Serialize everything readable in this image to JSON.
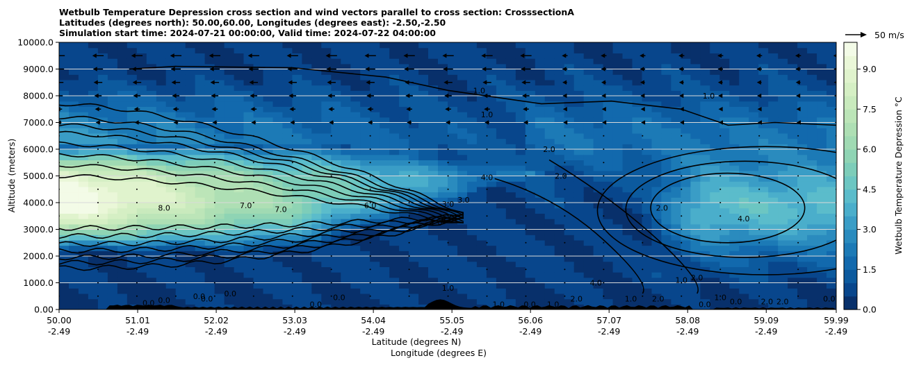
{
  "title": {
    "line1": "Wetbulb Temperature Depression cross section and wind vectors parallel to cross section: CrosssectionA",
    "line2": "Latitudes (degrees north): 50.00,60.00, Longitudes (degrees east): -2.50,-2.50",
    "line3": "Simulation start time: 2024-07-21 00:00:00, Valid time: 2024-07-22 04:00:00"
  },
  "chart_data": {
    "type": "heatmap",
    "subtype": "filled-contour cross section with line contours and wind vectors",
    "xlabel_lat": "Latitude (degrees N)",
    "xlabel_lon": "Longitude (degrees E)",
    "ylabel": "Altitude (meters)",
    "xlim": [
      50.0,
      59.99
    ],
    "ylim": [
      0,
      10000
    ],
    "x_ticks": [
      {
        "lat": "50.00",
        "lon": "-2.49",
        "value": 50.0
      },
      {
        "lat": "51.01",
        "lon": "-2.49",
        "value": 51.01
      },
      {
        "lat": "52.02",
        "lon": "-2.49",
        "value": 52.02
      },
      {
        "lat": "53.03",
        "lon": "-2.49",
        "value": 53.03
      },
      {
        "lat": "54.04",
        "lon": "-2.49",
        "value": 54.04
      },
      {
        "lat": "55.05",
        "lon": "-2.49",
        "value": 55.05
      },
      {
        "lat": "56.06",
        "lon": "-2.49",
        "value": 56.06
      },
      {
        "lat": "57.07",
        "lon": "-2.49",
        "value": 57.07
      },
      {
        "lat": "58.08",
        "lon": "-2.49",
        "value": 58.08
      },
      {
        "lat": "59.09",
        "lon": "-2.49",
        "value": 59.09
      },
      {
        "lat": "59.99",
        "lon": "-2.49",
        "value": 59.99
      }
    ],
    "y_ticks": [
      {
        "label": "0.00",
        "value": 0
      },
      {
        "label": "1000.0",
        "value": 1000
      },
      {
        "label": "2000.0",
        "value": 2000
      },
      {
        "label": "3000.0",
        "value": 3000
      },
      {
        "label": "4000.0",
        "value": 4000
      },
      {
        "label": "5000.0",
        "value": 5000
      },
      {
        "label": "6000.0",
        "value": 6000
      },
      {
        "label": "7000.0",
        "value": 7000
      },
      {
        "label": "8000.0",
        "value": 8000
      },
      {
        "label": "9000.0",
        "value": 9000
      },
      {
        "label": "10000.0",
        "value": 10000
      }
    ],
    "grid": "horizontal lines at each y tick",
    "colorbar": {
      "label": "Wetbulb Temperature Depression °C",
      "range": [
        0,
        10
      ],
      "ticks": [
        {
          "label": "0.0",
          "value": 0
        },
        {
          "label": "1.5",
          "value": 1.5
        },
        {
          "label": "3.0",
          "value": 3.0
        },
        {
          "label": "4.5",
          "value": 4.5
        },
        {
          "label": "6.0",
          "value": 6.0
        },
        {
          "label": "7.5",
          "value": 7.5
        },
        {
          "label": "9.0",
          "value": 9.0
        }
      ],
      "levels": 20,
      "colors": [
        "#08306b",
        "#08468c",
        "#0c5a9e",
        "#1269ad",
        "#1c7ab6",
        "#2a8bbe",
        "#3a9dc6",
        "#4aaecb",
        "#5bbccb",
        "#6cc6c2",
        "#7dcdb9",
        "#8fd4b4",
        "#a0dab3",
        "#aedfb4",
        "#bce5b8",
        "#c9eabd",
        "#d5efc4",
        "#e0f3cd",
        "#eaf7d8",
        "#f3fbe7"
      ]
    },
    "wind_reference": {
      "label": "50 m/s",
      "speed": 50
    },
    "contour_labels": [
      "1.0",
      "1.0",
      "1.0",
      "2.0",
      "2.0",
      "2.0",
      "3.0",
      "3.0",
      "4.0",
      "4.0",
      "4.0",
      "6.0",
      "7.0",
      "7.0",
      "8.0",
      "1.0",
      "1.0",
      "0.0",
      "0.0",
      "0.0",
      "0.0",
      "0.0",
      "0.0",
      "0.0",
      "1.0",
      "1.0",
      "2.0",
      "2.0",
      "2.0",
      "1.0",
      "1.0",
      "2.0",
      "0.0",
      "0.0",
      "0.0",
      "1.0",
      "0.0",
      "2.0"
    ],
    "wind_vectors": {
      "columns_lat": [
        50.0,
        50.5,
        51.0,
        51.5,
        52.0,
        52.5,
        53.0,
        53.5,
        54.0,
        54.5,
        55.0,
        55.5,
        56.0,
        56.5,
        57.0,
        57.5,
        58.0,
        58.5,
        59.0,
        59.5,
        59.99
      ],
      "rows_alt": [
        500,
        1000,
        1500,
        2000,
        2500,
        3000,
        3500,
        4000,
        4500,
        5000,
        5500,
        6000,
        6500,
        7000,
        7500,
        8000,
        8500,
        9000,
        9500
      ],
      "note": "parallel wind component, m/s; negative = toward south (left)"
    }
  }
}
